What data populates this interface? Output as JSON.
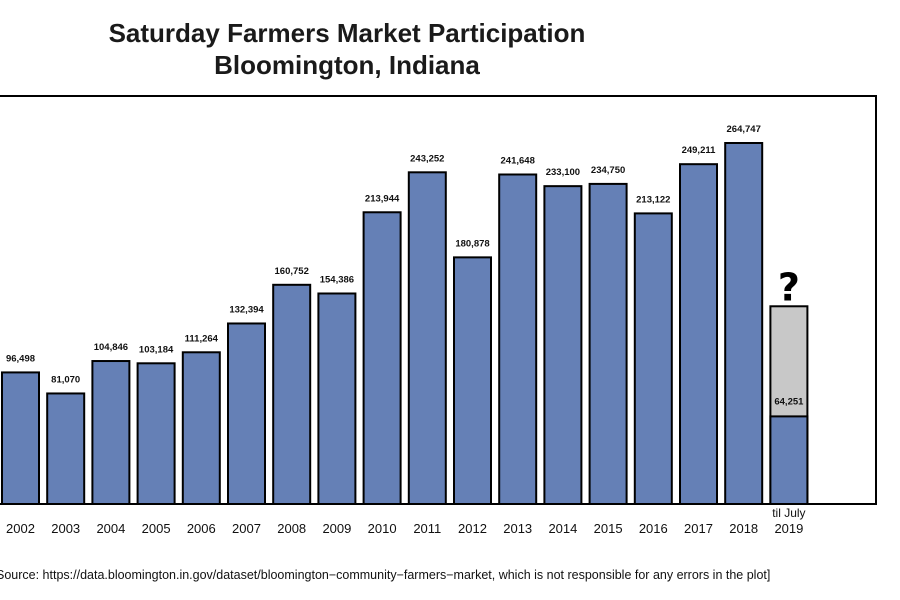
{
  "chart_data": {
    "type": "bar",
    "title": "Saturday Farmers Market Participation",
    "subtitle": "Bloomington, Indiana",
    "categories": [
      "2002",
      "2003",
      "2004",
      "2005",
      "2006",
      "2007",
      "2008",
      "2009",
      "2010",
      "2011",
      "2012",
      "2013",
      "2014",
      "2015",
      "2016",
      "2017",
      "2018",
      "2019"
    ],
    "values": [
      96498,
      81070,
      104846,
      103184,
      111264,
      132394,
      160752,
      154386,
      213944,
      243252,
      180878,
      241648,
      233100,
      234750,
      213122,
      249211,
      264747,
      64251
    ],
    "data_labels": [
      "96,498",
      "81,070",
      "104,846",
      "103,184",
      "111,264",
      "132,394",
      "160,752",
      "154,386",
      "213,944",
      "243,252",
      "180,878",
      "241,648",
      "233,100",
      "234,750",
      "213,122",
      "249,211",
      "264,747",
      "64,251"
    ],
    "partial_year": {
      "category": "2019",
      "note": "til July",
      "value": 64251,
      "projected_total": 145000,
      "question_mark": "?",
      "projected_color": "#c8c8c8"
    },
    "xlabel": "",
    "ylabel": "",
    "ylim": [
      0,
      300000
    ],
    "grid": false,
    "legend": "none",
    "bar_color": "#6580b6",
    "edge_color": "#000000"
  },
  "source": "Source: https://data.bloomington.in.gov/dataset/bloomington−community−farmers−market, which is not responsible for any errors in the plot]"
}
